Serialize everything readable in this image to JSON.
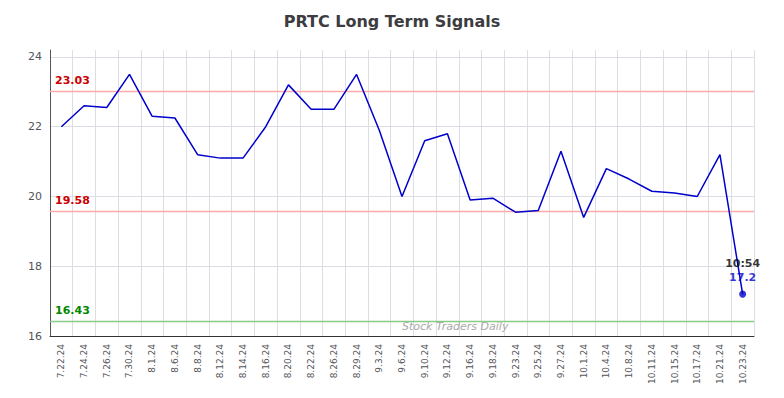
{
  "chart_data": {
    "type": "line",
    "title": "PRTC Long Term Signals",
    "categories": [
      "7.22.24",
      "7.24.24",
      "7.26.24",
      "7.30.24",
      "8.1.24",
      "8.6.24",
      "8.8.24",
      "8.12.24",
      "8.14.24",
      "8.16.24",
      "8.20.24",
      "8.22.24",
      "8.26.24",
      "8.29.24",
      "9.3.24",
      "9.6.24",
      "9.10.24",
      "9.12.24",
      "9.16.24",
      "9.18.24",
      "9.23.24",
      "9.25.24",
      "9.27.24",
      "10.1.24",
      "10.4.24",
      "10.8.24",
      "10.11.24",
      "10.15.24",
      "10.17.24",
      "10.21.24",
      "10.23.24"
    ],
    "values": [
      22.0,
      22.6,
      22.55,
      23.5,
      22.3,
      22.25,
      21.2,
      21.1,
      21.1,
      22.0,
      23.2,
      22.5,
      22.5,
      23.5,
      21.9,
      20.0,
      21.6,
      21.8,
      19.9,
      19.95,
      19.55,
      19.6,
      21.3,
      19.4,
      20.8,
      20.5,
      20.15,
      20.1,
      20.0,
      21.2,
      17.2
    ],
    "color": "#0000cc",
    "reference_lines": [
      {
        "value": 23.03,
        "label": "23.03",
        "color": "#ffaaaa",
        "label_color": "#cc0000"
      },
      {
        "value": 19.58,
        "label": "19.58",
        "color": "#ffaaaa",
        "label_color": "#cc0000"
      },
      {
        "value": 16.43,
        "label": "16.43",
        "color": "#88cc88",
        "label_color": "#008800"
      }
    ],
    "annotations": [
      {
        "text": "10:54",
        "color": "#000000"
      },
      {
        "text": "17.2",
        "color": "#0000cc"
      }
    ],
    "watermark": {
      "text": "Stock Traders Daily",
      "color": "#aaaaaa"
    },
    "ylim": [
      16,
      24.2
    ],
    "yticks": [
      16,
      18,
      20,
      22,
      24
    ],
    "grid": true
  }
}
